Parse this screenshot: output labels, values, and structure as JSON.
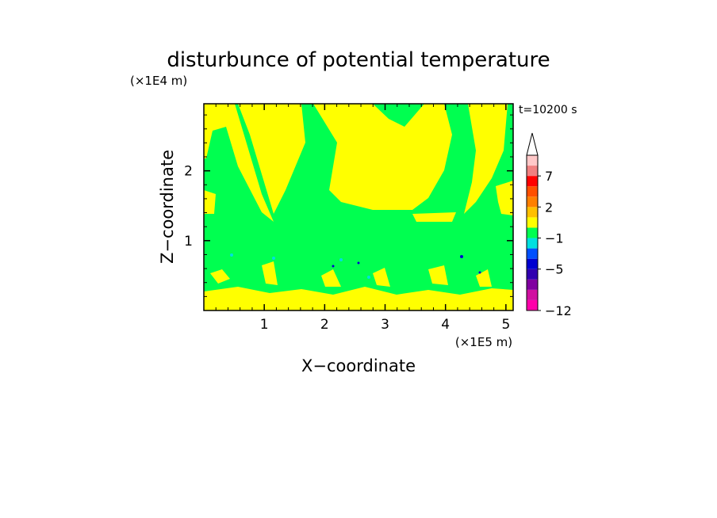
{
  "chart_data": {
    "type": "heatmap",
    "title": "disturbunce of potential temperature",
    "xlabel": "X−coordinate",
    "ylabel": "Z−coordinate",
    "x_unit": "(×1E5 m)",
    "y_unit": "(×1E4 m)",
    "time_label": "t=10200 s",
    "xlim": [
      0,
      5.12
    ],
    "ylim": [
      0,
      2.96
    ],
    "x_ticks": [
      {
        "value": 1,
        "label": "1"
      },
      {
        "value": 2,
        "label": "2"
      },
      {
        "value": 3,
        "label": "3"
      },
      {
        "value": 4,
        "label": "4"
      },
      {
        "value": 5,
        "label": "5"
      }
    ],
    "y_ticks": [
      {
        "value": 1,
        "label": "1"
      },
      {
        "value": 2,
        "label": "2"
      }
    ],
    "colorbar": {
      "levels": [
        {
          "color": "#ff00aa"
        },
        {
          "color": "#d010a0"
        },
        {
          "color": "#8000a0"
        },
        {
          "color": "#3000b0"
        },
        {
          "color": "#0000d0"
        },
        {
          "color": "#0050ff"
        },
        {
          "color": "#00e0e0"
        },
        {
          "color": "#00ff50"
        },
        {
          "color": "#ffff00"
        },
        {
          "color": "#ffc000"
        },
        {
          "color": "#ff8000"
        },
        {
          "color": "#ff5000"
        },
        {
          "color": "#ff0000"
        },
        {
          "color": "#f08080"
        },
        {
          "color": "#ffc8c8"
        }
      ],
      "labels": [
        {
          "label": "−12",
          "boundary": 0
        },
        {
          "label": "−5",
          "boundary": 4
        },
        {
          "label": "−1",
          "boundary": 7
        },
        {
          "label": "2",
          "boundary": 10
        },
        {
          "label": "7",
          "boundary": 13
        }
      ],
      "over_color": "#ffffff"
    },
    "fill_colors": {
      "background": "#00ff50",
      "warm": "#ffff00",
      "cool": "#00e0e0",
      "cold": "#0000d0"
    }
  }
}
